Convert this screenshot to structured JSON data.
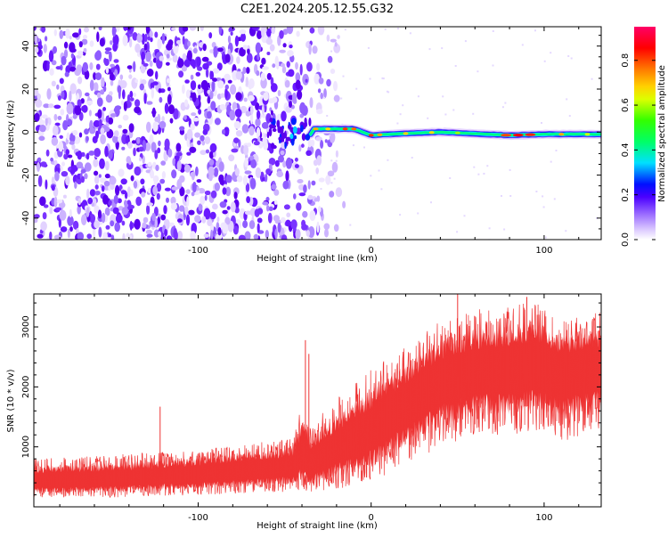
{
  "title": "C2E1.2024.205.12.55.G32",
  "colors": {
    "snr_line": "#ee3333",
    "axis": "#000000",
    "background": "#ffffff",
    "colormap": [
      "#ffffff",
      "#e6d6ff",
      "#b590ff",
      "#7a3bff",
      "#5a10f0",
      "#0000ff",
      "#00ccff",
      "#00ff66",
      "#66ff00",
      "#ffff00",
      "#ff9900",
      "#ff0000",
      "#ff0066"
    ]
  },
  "chart_data": [
    {
      "type": "heatmap",
      "xlabel": "Height of straight line (km)",
      "ylabel": "Frequency (Hz)",
      "xlim": [
        -195,
        133
      ],
      "ylim": [
        -50,
        49
      ],
      "xticks": [
        -100,
        0,
        100
      ],
      "yticks": [
        -40,
        -20,
        0,
        20,
        40
      ],
      "xtick_labels": [
        "-100",
        "0",
        "100"
      ],
      "ytick_labels": [
        "-40",
        "-20",
        "0",
        "20",
        "40"
      ],
      "noise_region_x": [
        -195,
        -35
      ],
      "signal_band": {
        "x_start": -35,
        "x_end": 133,
        "center_hz": [
          {
            "x": -33,
            "hz": 1.5
          },
          {
            "x": -10,
            "hz": 1.5
          },
          {
            "x": 0,
            "hz": -1.5
          },
          {
            "x": 10,
            "hz": -1
          },
          {
            "x": 40,
            "hz": 0
          },
          {
            "x": 80,
            "hz": -1.5
          },
          {
            "x": 100,
            "hz": -1
          },
          {
            "x": 133,
            "hz": -1
          }
        ],
        "peak_amplitude": 0.9
      },
      "grid": false
    },
    {
      "type": "colorbar",
      "label": "Normalized spectral amplitude",
      "range": [
        0.0,
        0.95
      ],
      "ticks": [
        0.0,
        0.2,
        0.4,
        0.6,
        0.8
      ],
      "tick_labels": [
        "0.0",
        "0.2",
        "0.4",
        "0.6",
        "0.8"
      ]
    },
    {
      "type": "line",
      "xlabel": "Height of straight line (km)",
      "ylabel": "SNR (10 * v/v)",
      "xlim": [
        -195,
        133
      ],
      "ylim": [
        0,
        3550
      ],
      "xticks": [
        -100,
        0,
        100
      ],
      "yticks": [
        1000,
        2000,
        3000
      ],
      "xtick_labels": [
        "-100",
        "0",
        "100"
      ],
      "ytick_labels": [
        "1000",
        "2000",
        "3000"
      ],
      "envelope": [
        {
          "x": -195,
          "low": 150,
          "mean": 420,
          "high": 800
        },
        {
          "x": -160,
          "low": 150,
          "mean": 440,
          "high": 850
        },
        {
          "x": -130,
          "low": 170,
          "mean": 480,
          "high": 900
        },
        {
          "x": -100,
          "low": 200,
          "mean": 530,
          "high": 950
        },
        {
          "x": -70,
          "low": 230,
          "mean": 600,
          "high": 1050
        },
        {
          "x": -45,
          "low": 250,
          "mean": 650,
          "high": 1150
        },
        {
          "x": -40,
          "low": 300,
          "mean": 900,
          "high": 1700
        },
        {
          "x": -35,
          "low": 200,
          "mean": 700,
          "high": 1400
        },
        {
          "x": -20,
          "low": 300,
          "mean": 950,
          "high": 1800
        },
        {
          "x": 0,
          "low": 400,
          "mean": 1250,
          "high": 2300
        },
        {
          "x": 20,
          "low": 700,
          "mean": 1700,
          "high": 2700
        },
        {
          "x": 40,
          "low": 1000,
          "mean": 2100,
          "high": 3100
        },
        {
          "x": 60,
          "low": 1200,
          "mean": 2250,
          "high": 3300
        },
        {
          "x": 80,
          "low": 1200,
          "mean": 2300,
          "high": 3350
        },
        {
          "x": 95,
          "low": 1250,
          "mean": 2350,
          "high": 3450
        },
        {
          "x": 110,
          "low": 1100,
          "mean": 2250,
          "high": 3100
        },
        {
          "x": 133,
          "low": 1200,
          "mean": 2350,
          "high": 3250
        }
      ],
      "spikes": [
        {
          "x": -122,
          "y": 1670
        },
        {
          "x": -38,
          "y": 2780
        },
        {
          "x": -36,
          "y": 2550
        },
        {
          "x": 50,
          "y": 3550
        },
        {
          "x": 90,
          "y": 3500
        }
      ],
      "grid": false
    }
  ]
}
